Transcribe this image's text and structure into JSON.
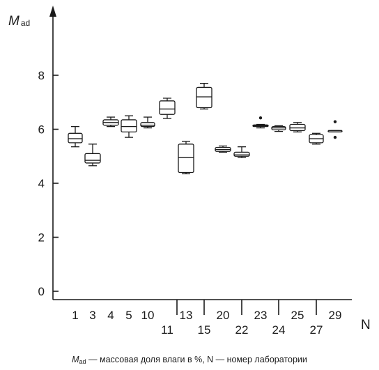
{
  "chart_data": {
    "type": "boxplot",
    "ylabel_main": "M",
    "ylabel_sub": "ad",
    "xlabel": "N",
    "ylim": [
      0,
      8
    ],
    "yticks": [
      0,
      2,
      4,
      6,
      8
    ],
    "grid": false,
    "categories": [
      "1",
      "3",
      "4",
      "5",
      "10",
      "11",
      "13",
      "15",
      "20",
      "22",
      "23",
      "24",
      "25",
      "27",
      "29"
    ],
    "boxes": [
      {
        "lab": "1",
        "min": 5.35,
        "q1": 5.5,
        "median": 5.65,
        "q3": 5.85,
        "max": 6.1,
        "outliers": []
      },
      {
        "lab": "3",
        "min": 4.65,
        "q1": 4.75,
        "median": 4.85,
        "q3": 5.1,
        "max": 5.45,
        "outliers": []
      },
      {
        "lab": "4",
        "min": 6.1,
        "q1": 6.15,
        "median": 6.25,
        "q3": 6.35,
        "max": 6.45,
        "outliers": []
      },
      {
        "lab": "5",
        "min": 5.7,
        "q1": 5.9,
        "median": 6.1,
        "q3": 6.35,
        "max": 6.5,
        "outliers": []
      },
      {
        "lab": "10",
        "min": 6.05,
        "q1": 6.1,
        "median": 6.15,
        "q3": 6.25,
        "max": 6.45,
        "outliers": []
      },
      {
        "lab": "11",
        "min": 6.4,
        "q1": 6.55,
        "median": 6.75,
        "q3": 7.05,
        "max": 7.15,
        "outliers": []
      },
      {
        "lab": "13",
        "min": 4.35,
        "q1": 4.4,
        "median": 4.95,
        "q3": 5.45,
        "max": 5.55,
        "outliers": []
      },
      {
        "lab": "15",
        "min": 6.75,
        "q1": 6.8,
        "median": 7.2,
        "q3": 7.55,
        "max": 7.7,
        "outliers": []
      },
      {
        "lab": "20",
        "min": 5.15,
        "q1": 5.18,
        "median": 5.25,
        "q3": 5.33,
        "max": 5.38,
        "outliers": []
      },
      {
        "lab": "22",
        "min": 4.95,
        "q1": 5.0,
        "median": 5.05,
        "q3": 5.15,
        "max": 5.35,
        "outliers": []
      },
      {
        "lab": "23",
        "min": 6.05,
        "q1": 6.1,
        "median": 6.13,
        "q3": 6.16,
        "max": 6.18,
        "outliers": [
          6.42
        ]
      },
      {
        "lab": "24",
        "min": 5.92,
        "q1": 5.98,
        "median": 6.05,
        "q3": 6.1,
        "max": 6.13,
        "outliers": []
      },
      {
        "lab": "25",
        "min": 5.9,
        "q1": 5.95,
        "median": 6.05,
        "q3": 6.18,
        "max": 6.25,
        "outliers": []
      },
      {
        "lab": "27",
        "min": 5.45,
        "q1": 5.5,
        "median": 5.65,
        "q3": 5.8,
        "max": 5.85,
        "outliers": []
      },
      {
        "lab": "29",
        "min": 5.9,
        "q1": 5.9,
        "median": 5.95,
        "q3": 5.95,
        "max": 5.95,
        "outliers": [
          6.28,
          5.7
        ]
      }
    ]
  },
  "caption": {
    "main": "M",
    "sub": "ad",
    "text": " — массовая доля влаги в %, N — номер лаборатории"
  }
}
